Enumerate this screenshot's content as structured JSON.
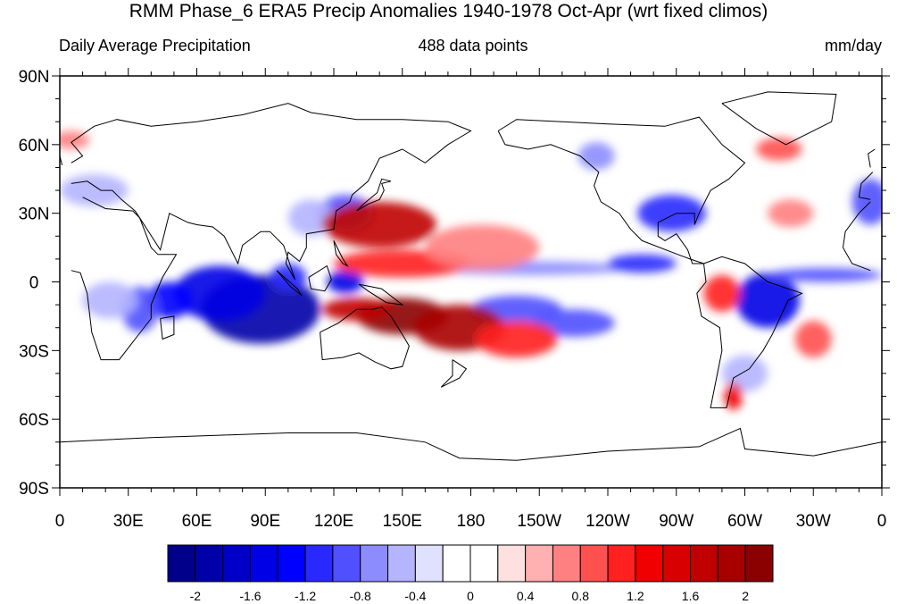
{
  "title": "RMM Phase_6 ERA5 Precip Anomalies 1940-1978 Oct-Apr (wrt fixed climos)",
  "subtitle_left": "Daily Average Precipitation",
  "subtitle_center": "488 data points",
  "subtitle_right": "mm/day",
  "map": {
    "projection": "cylindrical equidistant",
    "lon_range": [
      0,
      360
    ],
    "lat_range": [
      -90,
      90
    ],
    "lat_ticks": [
      {
        "lat": 90,
        "label": "90N"
      },
      {
        "lat": 60,
        "label": "60N"
      },
      {
        "lat": 30,
        "label": "30N"
      },
      {
        "lat": 0,
        "label": "0"
      },
      {
        "lat": -30,
        "label": "30S"
      },
      {
        "lat": -60,
        "label": "60S"
      },
      {
        "lat": -90,
        "label": "90S"
      }
    ],
    "lon_ticks": [
      {
        "lon": 0,
        "label": "0"
      },
      {
        "lon": 30,
        "label": "30E"
      },
      {
        "lon": 60,
        "label": "60E"
      },
      {
        "lon": 90,
        "label": "90E"
      },
      {
        "lon": 120,
        "label": "120E"
      },
      {
        "lon": 150,
        "label": "150E"
      },
      {
        "lon": 180,
        "label": "180"
      },
      {
        "lon": 210,
        "label": "150W"
      },
      {
        "lon": 240,
        "label": "120W"
      },
      {
        "lon": 270,
        "label": "90W"
      },
      {
        "lon": 300,
        "label": "60W"
      },
      {
        "lon": 330,
        "label": "30W"
      },
      {
        "lon": 360,
        "label": "0"
      }
    ],
    "anomaly_regions": [
      {
        "lon": 88,
        "lat": -12,
        "rlon": 26,
        "rlat": 15,
        "value": -1.9
      },
      {
        "lon": 70,
        "lat": -5,
        "rlon": 20,
        "rlat": 12,
        "value": -1.5
      },
      {
        "lon": 48,
        "lat": -8,
        "rlon": 10,
        "rlat": 8,
        "value": -1.3
      },
      {
        "lon": 35,
        "lat": -12,
        "rlon": 8,
        "rlat": 10,
        "value": -1.0
      },
      {
        "lon": 22,
        "lat": -8,
        "rlon": 12,
        "rlat": 8,
        "value": -0.5
      },
      {
        "lon": 100,
        "lat": 2,
        "rlon": 8,
        "rlat": 6,
        "value": -1.2
      },
      {
        "lon": 125,
        "lat": 30,
        "rlon": 12,
        "rlat": 8,
        "value": -1.0
      },
      {
        "lon": 110,
        "lat": 28,
        "rlon": 10,
        "rlat": 8,
        "value": -0.5
      },
      {
        "lon": 125,
        "lat": 0,
        "rlon": 8,
        "rlat": 5,
        "value": -1.6
      },
      {
        "lon": 200,
        "lat": -12,
        "rlon": 20,
        "rlat": 6,
        "value": -1.0
      },
      {
        "lon": 225,
        "lat": -18,
        "rlon": 18,
        "rlat": 6,
        "value": -0.9
      },
      {
        "lon": 205,
        "lat": 6,
        "rlon": 45,
        "rlat": 3,
        "value": -0.8
      },
      {
        "lon": 255,
        "lat": 8,
        "rlon": 15,
        "rlat": 4,
        "value": -1.1
      },
      {
        "lon": 268,
        "lat": 30,
        "rlon": 15,
        "rlat": 8,
        "value": -1.2
      },
      {
        "lon": 310,
        "lat": -8,
        "rlon": 14,
        "rlat": 12,
        "value": -1.6
      },
      {
        "lon": 335,
        "lat": 3,
        "rlon": 25,
        "rlat": 3,
        "value": -0.9
      },
      {
        "lon": 300,
        "lat": -40,
        "rlon": 10,
        "rlat": 8,
        "value": -0.5
      },
      {
        "lon": 355,
        "lat": 35,
        "rlon": 8,
        "rlat": 10,
        "value": -0.9
      },
      {
        "lon": 15,
        "lat": 40,
        "rlon": 15,
        "rlat": 7,
        "value": -0.6
      },
      {
        "lon": 235,
        "lat": 55,
        "rlon": 8,
        "rlat": 6,
        "value": -0.8
      },
      {
        "lon": 140,
        "lat": 25,
        "rlon": 25,
        "rlat": 10,
        "value": 1.6
      },
      {
        "lon": 150,
        "lat": 8,
        "rlon": 30,
        "rlat": 6,
        "value": 1.0
      },
      {
        "lon": 150,
        "lat": -15,
        "rlon": 20,
        "rlat": 8,
        "value": 2.0
      },
      {
        "lon": 175,
        "lat": -20,
        "rlon": 20,
        "rlat": 10,
        "value": 1.8
      },
      {
        "lon": 130,
        "lat": -12,
        "rlon": 15,
        "rlat": 5,
        "value": 1.6
      },
      {
        "lon": 200,
        "lat": -25,
        "rlon": 18,
        "rlat": 8,
        "value": 1.0
      },
      {
        "lon": 185,
        "lat": 15,
        "rlon": 25,
        "rlat": 10,
        "value": 0.6
      },
      {
        "lon": 290,
        "lat": -5,
        "rlon": 8,
        "rlat": 8,
        "value": 1.1
      },
      {
        "lon": 295,
        "lat": -50,
        "rlon": 4,
        "rlat": 6,
        "value": 1.3
      },
      {
        "lon": 330,
        "lat": -25,
        "rlon": 8,
        "rlat": 8,
        "value": 0.8
      },
      {
        "lon": 320,
        "lat": 30,
        "rlon": 10,
        "rlat": 6,
        "value": 0.6
      },
      {
        "lon": 315,
        "lat": 58,
        "rlon": 10,
        "rlat": 5,
        "value": 0.8
      },
      {
        "lon": 5,
        "lat": 62,
        "rlon": 8,
        "rlat": 4,
        "value": 0.6
      }
    ],
    "coastlines": [
      {
        "name": "africa",
        "points": [
          [
            -17,
            15
          ],
          [
            -16,
            22
          ],
          [
            -10,
            30
          ],
          [
            -5,
            35
          ],
          [
            10,
            37
          ],
          [
            20,
            32
          ],
          [
            32,
            31
          ],
          [
            35,
            28
          ],
          [
            40,
            15
          ],
          [
            43,
            12
          ],
          [
            51,
            12
          ],
          [
            45,
            2
          ],
          [
            40,
            -10
          ],
          [
            40,
            -16
          ],
          [
            33,
            -25
          ],
          [
            26,
            -34
          ],
          [
            18,
            -34
          ],
          [
            14,
            -22
          ],
          [
            12,
            -5
          ],
          [
            9,
            4
          ],
          [
            5,
            5
          ],
          [
            -5,
            5
          ],
          [
            -13,
            8
          ],
          [
            -17,
            15
          ]
        ]
      },
      {
        "name": "madagascar",
        "points": [
          [
            44,
            -16
          ],
          [
            50,
            -15
          ],
          [
            50,
            -23
          ],
          [
            45,
            -25
          ],
          [
            44,
            -16
          ]
        ]
      },
      {
        "name": "eurasia",
        "points": [
          [
            -10,
            37
          ],
          [
            -9,
            43
          ],
          [
            -4,
            48
          ],
          [
            5,
            52
          ],
          [
            10,
            55
          ],
          [
            5,
            61
          ],
          [
            15,
            68
          ],
          [
            25,
            71
          ],
          [
            40,
            68
          ],
          [
            60,
            70
          ],
          [
            80,
            73
          ],
          [
            100,
            78
          ],
          [
            110,
            74
          ],
          [
            130,
            71
          ],
          [
            150,
            71
          ],
          [
            170,
            70
          ],
          [
            180,
            66
          ],
          [
            170,
            60
          ],
          [
            160,
            52
          ],
          [
            150,
            58
          ],
          [
            140,
            54
          ],
          [
            135,
            44
          ],
          [
            128,
            38
          ],
          [
            127,
            35
          ],
          [
            121,
            31
          ],
          [
            120,
            23
          ],
          [
            108,
            21
          ],
          [
            108,
            15
          ],
          [
            105,
            9
          ],
          [
            100,
            13
          ],
          [
            99,
            8
          ],
          [
            103,
            1
          ],
          [
            98,
            16
          ],
          [
            92,
            22
          ],
          [
            88,
            22
          ],
          [
            80,
            16
          ],
          [
            78,
            8
          ],
          [
            72,
            20
          ],
          [
            67,
            24
          ],
          [
            60,
            25
          ],
          [
            56,
            26
          ],
          [
            52,
            28
          ],
          [
            48,
            30
          ],
          [
            44,
            14
          ],
          [
            35,
            28
          ],
          [
            33,
            31
          ],
          [
            27,
            36
          ],
          [
            23,
            40
          ],
          [
            18,
            40
          ],
          [
            12,
            44
          ],
          [
            5,
            43
          ],
          [
            -5,
            36
          ],
          [
            -10,
            37
          ]
        ]
      },
      {
        "name": "borneo",
        "points": [
          [
            109,
            2
          ],
          [
            117,
            7
          ],
          [
            119,
            1
          ],
          [
            116,
            -4
          ],
          [
            110,
            -3
          ],
          [
            109,
            2
          ]
        ]
      },
      {
        "name": "sumatra",
        "points": [
          [
            95,
            5
          ],
          [
            104,
            -3
          ],
          [
            106,
            -6
          ],
          [
            101,
            -2
          ],
          [
            95,
            5
          ]
        ]
      },
      {
        "name": "new-guinea",
        "points": [
          [
            131,
            -1
          ],
          [
            141,
            -3
          ],
          [
            150,
            -10
          ],
          [
            143,
            -9
          ],
          [
            135,
            -4
          ],
          [
            131,
            -1
          ]
        ]
      },
      {
        "name": "japan",
        "points": [
          [
            130,
            31
          ],
          [
            135,
            34
          ],
          [
            140,
            36
          ],
          [
            142,
            40
          ],
          [
            141,
            43
          ],
          [
            145,
            44
          ],
          [
            141,
            45
          ],
          [
            139,
            39
          ],
          [
            133,
            34
          ],
          [
            130,
            31
          ]
        ]
      },
      {
        "name": "philippines",
        "points": [
          [
            120,
            18
          ],
          [
            122,
            14
          ],
          [
            124,
            10
          ],
          [
            126,
            7
          ],
          [
            124,
            8
          ],
          [
            121,
            12
          ],
          [
            120,
            18
          ]
        ]
      },
      {
        "name": "australia",
        "points": [
          [
            114,
            -22
          ],
          [
            122,
            -18
          ],
          [
            130,
            -12
          ],
          [
            137,
            -12
          ],
          [
            141,
            -11
          ],
          [
            145,
            -15
          ],
          [
            150,
            -23
          ],
          [
            153,
            -28
          ],
          [
            150,
            -37
          ],
          [
            145,
            -38
          ],
          [
            138,
            -35
          ],
          [
            131,
            -31
          ],
          [
            124,
            -33
          ],
          [
            115,
            -34
          ],
          [
            114,
            -22
          ]
        ]
      },
      {
        "name": "new-zealand",
        "points": [
          [
            172,
            -34
          ],
          [
            178,
            -38
          ],
          [
            175,
            -42
          ],
          [
            171,
            -44
          ],
          [
            167,
            -46
          ],
          [
            172,
            -41
          ],
          [
            172,
            -34
          ]
        ]
      },
      {
        "name": "north-america",
        "points": [
          [
            192,
            66
          ],
          [
            200,
            71
          ],
          [
            220,
            70
          ],
          [
            240,
            69
          ],
          [
            265,
            68
          ],
          [
            280,
            72
          ],
          [
            290,
            60
          ],
          [
            300,
            52
          ],
          [
            293,
            45
          ],
          [
            285,
            40
          ],
          [
            280,
            30
          ],
          [
            278,
            25
          ],
          [
            278,
            30
          ],
          [
            270,
            30
          ],
          [
            262,
            26
          ],
          [
            262,
            20
          ],
          [
            265,
            18
          ],
          [
            270,
            21
          ],
          [
            275,
            14
          ],
          [
            277,
            8
          ],
          [
            282,
            8
          ],
          [
            276,
            10
          ],
          [
            268,
            13
          ],
          [
            255,
            18
          ],
          [
            250,
            23
          ],
          [
            245,
            30
          ],
          [
            237,
            35
          ],
          [
            234,
            42
          ],
          [
            236,
            48
          ],
          [
            228,
            55
          ],
          [
            215,
            60
          ],
          [
            205,
            58
          ],
          [
            195,
            60
          ],
          [
            192,
            66
          ]
        ]
      },
      {
        "name": "greenland",
        "points": [
          [
            290,
            78
          ],
          [
            310,
            83
          ],
          [
            340,
            82
          ],
          [
            338,
            70
          ],
          [
            318,
            60
          ],
          [
            305,
            67
          ],
          [
            290,
            78
          ]
        ]
      },
      {
        "name": "south-america",
        "points": [
          [
            282,
            8
          ],
          [
            283,
            0
          ],
          [
            279,
            -5
          ],
          [
            281,
            -15
          ],
          [
            289,
            -20
          ],
          [
            290,
            -30
          ],
          [
            288,
            -40
          ],
          [
            285,
            -55
          ],
          [
            292,
            -55
          ],
          [
            295,
            -42
          ],
          [
            302,
            -38
          ],
          [
            308,
            -30
          ],
          [
            312,
            -23
          ],
          [
            319,
            -8
          ],
          [
            325,
            -5
          ],
          [
            310,
            0
          ],
          [
            300,
            8
          ],
          [
            290,
            11
          ],
          [
            282,
            8
          ]
        ]
      },
      {
        "name": "antarctica",
        "points": [
          [
            0,
            -70
          ],
          [
            40,
            -68
          ],
          [
            70,
            -67
          ],
          [
            100,
            -66
          ],
          [
            130,
            -66
          ],
          [
            160,
            -70
          ],
          [
            175,
            -77
          ],
          [
            200,
            -78
          ],
          [
            240,
            -74
          ],
          [
            280,
            -72
          ],
          [
            298,
            -64
          ],
          [
            300,
            -73
          ],
          [
            330,
            -76
          ],
          [
            360,
            -70
          ]
        ]
      },
      {
        "name": "uk",
        "points": [
          [
            -5,
            50
          ],
          [
            1,
            51
          ],
          [
            0,
            55
          ],
          [
            -3,
            58
          ],
          [
            -6,
            56
          ],
          [
            -5,
            50
          ]
        ]
      }
    ]
  },
  "colorbar": {
    "colors": [
      "#00008b",
      "#0000a8",
      "#0000c8",
      "#0000e6",
      "#0000ff",
      "#2828ff",
      "#5050ff",
      "#8c8cff",
      "#b4b4ff",
      "#e0e0ff",
      "#ffffff",
      "#ffffff",
      "#ffe0e0",
      "#ffb0b0",
      "#ff8080",
      "#ff5050",
      "#ff2020",
      "#f00000",
      "#d80000",
      "#c00000",
      "#a80000",
      "#8b0000"
    ],
    "levels": [
      -2,
      -1.8,
      -1.6,
      -1.4,
      -1.2,
      -1,
      -0.8,
      -0.6,
      -0.4,
      -0.2,
      0,
      0.2,
      0.4,
      0.6,
      0.8,
      1,
      1.2,
      1.4,
      1.6,
      1.8,
      2
    ],
    "labels": [
      "-2",
      "-1.6",
      "-1.2",
      "-0.8",
      "-0.4",
      "0",
      "0.4",
      "0.8",
      "1.2",
      "1.6",
      "2"
    ]
  }
}
